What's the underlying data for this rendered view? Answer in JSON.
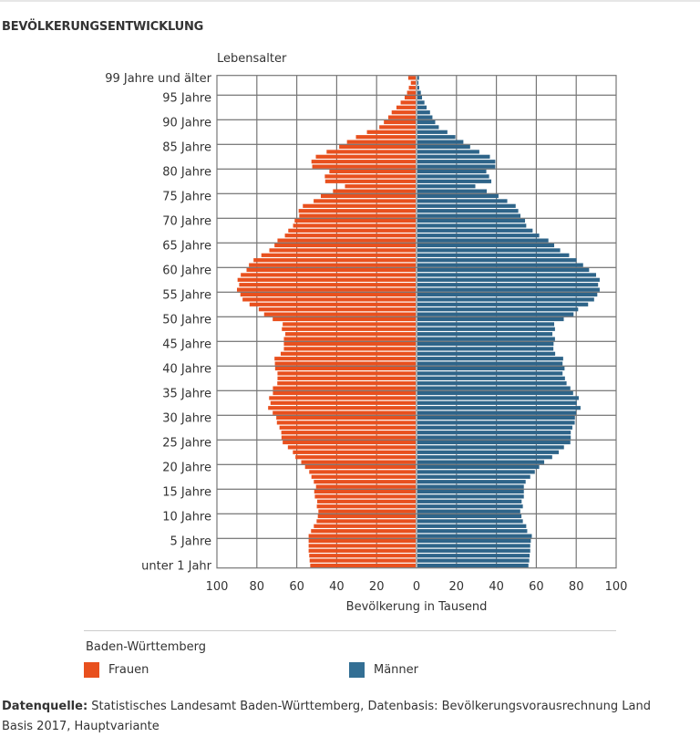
{
  "title": "BEVÖLKERUNGSENTWICKLUNG",
  "chart_data": {
    "type": "bar",
    "orientation": "horizontal",
    "subtype": "population-pyramid",
    "ylabel": "Lebensalter",
    "xlabel": "Bevölkerung in Tausend",
    "xlim": [
      -100,
      100
    ],
    "x_ticks": [
      "100",
      "80",
      "60",
      "40",
      "20",
      "0",
      "20",
      "40",
      "60",
      "80",
      "100"
    ],
    "y_tick_labels": [
      {
        "age": 0,
        "label": "unter 1 Jahr"
      },
      {
        "age": 5,
        "label": "5 Jahre"
      },
      {
        "age": 10,
        "label": "10 Jahre"
      },
      {
        "age": 15,
        "label": "15 Jahre"
      },
      {
        "age": 20,
        "label": "20 Jahre"
      },
      {
        "age": 25,
        "label": "25 Jahre"
      },
      {
        "age": 30,
        "label": "30 Jahre"
      },
      {
        "age": 35,
        "label": "35 Jahre"
      },
      {
        "age": 40,
        "label": "40 Jahre"
      },
      {
        "age": 45,
        "label": "45 Jahre"
      },
      {
        "age": 50,
        "label": "50 Jahre"
      },
      {
        "age": 55,
        "label": "55 Jahre"
      },
      {
        "age": 60,
        "label": "60 Jahre"
      },
      {
        "age": 65,
        "label": "65 Jahre"
      },
      {
        "age": 70,
        "label": "70 Jahre"
      },
      {
        "age": 75,
        "label": "75 Jahre"
      },
      {
        "age": 80,
        "label": "80 Jahre"
      },
      {
        "age": 85,
        "label": "85 Jahre"
      },
      {
        "age": 90,
        "label": "90 Jahre"
      },
      {
        "age": 95,
        "label": "95 Jahre"
      },
      {
        "age": 99,
        "label": "99 Jahre und älter"
      }
    ],
    "grid": true,
    "legend_position": "bottom",
    "legend_title": "Baden-Württemberg",
    "series": [
      {
        "name": "Frauen",
        "color": "#e8501e",
        "side": "left",
        "values": [
          52.8,
          53.1,
          53.3,
          53.6,
          53.6,
          53.6,
          53.6,
          52.4,
          51,
          49.6,
          49,
          48.7,
          49.5,
          49.3,
          50.5,
          50.8,
          49.9,
          51,
          52.2,
          53.3,
          55.4,
          57.3,
          60.2,
          61.5,
          64,
          66.6,
          67.2,
          67.3,
          68.2,
          69.5,
          69.8,
          71.6,
          73.9,
          72.7,
          73.4,
          71.5,
          71.5,
          69.3,
          69.2,
          69.2,
          70.4,
          70.5,
          70.7,
          67.6,
          66,
          66,
          66,
          65.3,
          67,
          66.6,
          71.6,
          75.9,
          78.6,
          83.2,
          86.7,
          87.8,
          89.5,
          88.4,
          89.2,
          87.6,
          84.7,
          83.5,
          81.2,
          77.3,
          73.3,
          70.7,
          69.2,
          65.5,
          63.8,
          61.4,
          60.6,
          58.3,
          58.6,
          56.5,
          51.1,
          47.5,
          41.4,
          35.4,
          45.3,
          45.5,
          43.2,
          51.8,
          52.2,
          50,
          44.6,
          38.3,
          34.4,
          29.9,
          24.4,
          18.2,
          15.9,
          13.7,
          12,
          9.6,
          7.5,
          5.5,
          4.3,
          3.4,
          2.4,
          3.7
        ]
      },
      {
        "name": "Männer",
        "color": "#2e6489",
        "side": "right",
        "values": [
          55.6,
          56,
          56.2,
          56.5,
          56.5,
          56.8,
          57.3,
          55,
          54.5,
          52.8,
          52.1,
          51.5,
          52.8,
          52.2,
          53.3,
          53.3,
          53.3,
          54.2,
          56.5,
          58.8,
          61,
          63.5,
          67.5,
          70.8,
          73.4,
          76.6,
          76.8,
          76.8,
          77.6,
          78.8,
          78.9,
          79.5,
          81.7,
          79.8,
          80.8,
          78,
          76.6,
          74.7,
          73.9,
          72.7,
          73.7,
          72.7,
          73,
          69,
          68.1,
          68.2,
          68.9,
          67.6,
          68.9,
          68.5,
          73.3,
          78.2,
          80.5,
          85.5,
          88.5,
          90.1,
          91.3,
          90.5,
          91.3,
          89.5,
          86,
          83,
          79.7,
          76,
          71.5,
          68.5,
          65.6,
          61,
          57.7,
          54.5,
          53.9,
          51.6,
          50.5,
          49.2,
          45,
          40.6,
          34.7,
          29,
          37,
          35.9,
          34.5,
          39,
          39,
          36.3,
          31,
          26.4,
          23,
          19,
          15,
          10.7,
          8.9,
          7.5,
          6.3,
          4.6,
          3.5,
          2.3,
          1.7,
          0.9,
          0.5,
          0.8
        ]
      }
    ]
  },
  "legend": {
    "title": "Baden-Württemberg",
    "items": [
      {
        "label": "Frauen",
        "color": "#e8501e"
      },
      {
        "label": "Männer",
        "color": "#336f94"
      }
    ]
  },
  "source": {
    "label": "Datenquelle:",
    "text": " Statistisches Landesamt Baden-Württemberg, Datenbasis: Bevölkerungsvorausrechnung Land Basis 2017, Hauptvariante"
  }
}
